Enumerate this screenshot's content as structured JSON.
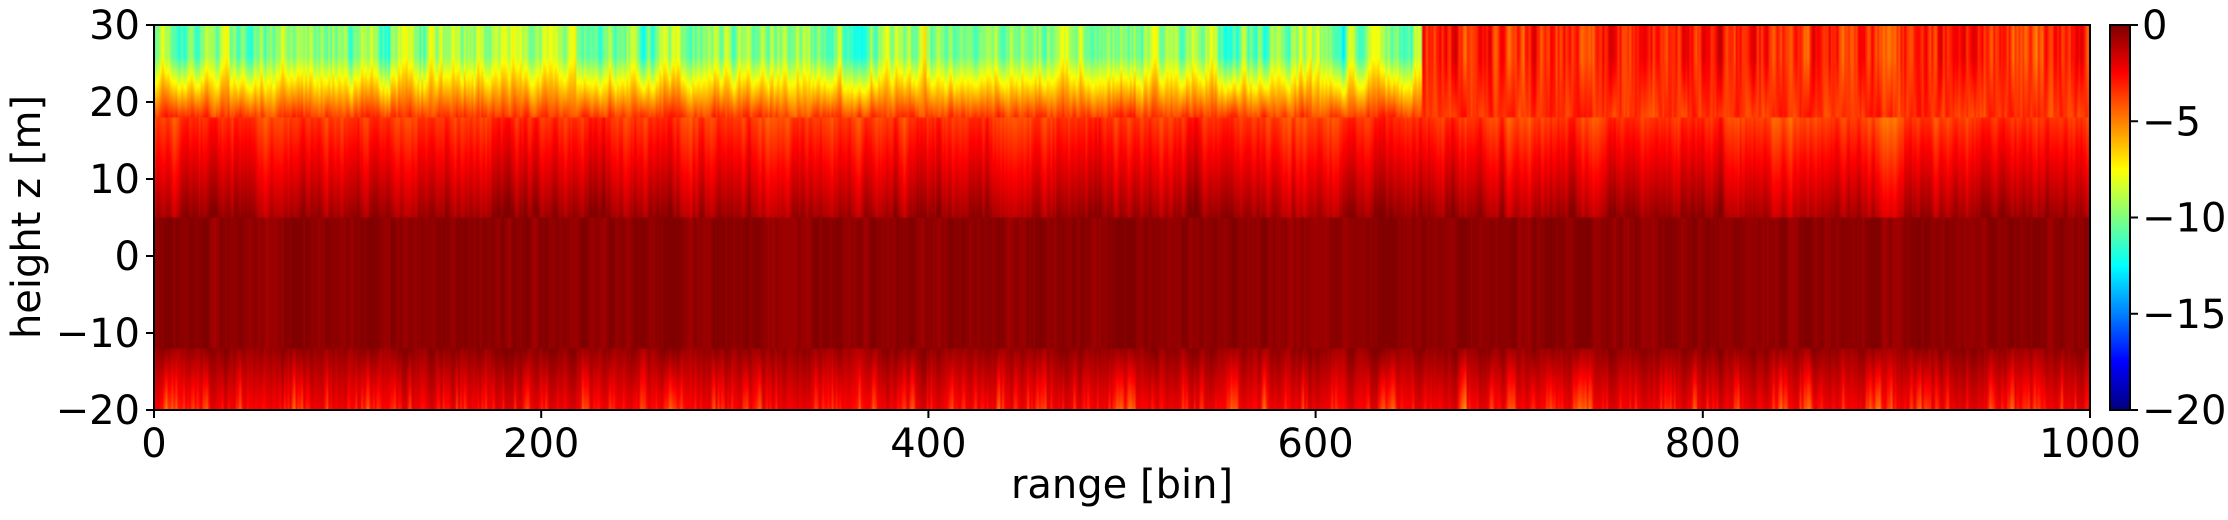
{
  "chart_data": {
    "type": "heatmap",
    "xlabel": "range [bin]",
    "ylabel": "height z [m]",
    "xlim": [
      0,
      1000
    ],
    "ylim": [
      -20,
      30
    ],
    "x_ticks": [
      "0",
      "200",
      "400",
      "600",
      "800",
      "1000"
    ],
    "y_ticks": [
      "30",
      "20",
      "10",
      "0",
      "−10",
      "−20"
    ],
    "colorbar": {
      "range": [
        -20,
        0
      ],
      "ticks": [
        "0",
        "−5",
        "−10",
        "−15",
        "−20"
      ],
      "colormap": "jet"
    },
    "grid": false,
    "description_of_field": {
      "bottom_band_value": -2,
      "core_band_z_range": [
        -12,
        5
      ],
      "core_value": 0,
      "upper_band_z_range": [
        18,
        30
      ],
      "upper_left_value_range": [
        -12,
        -8
      ],
      "upper_right_value_range": [
        -5,
        -2
      ]
    }
  }
}
